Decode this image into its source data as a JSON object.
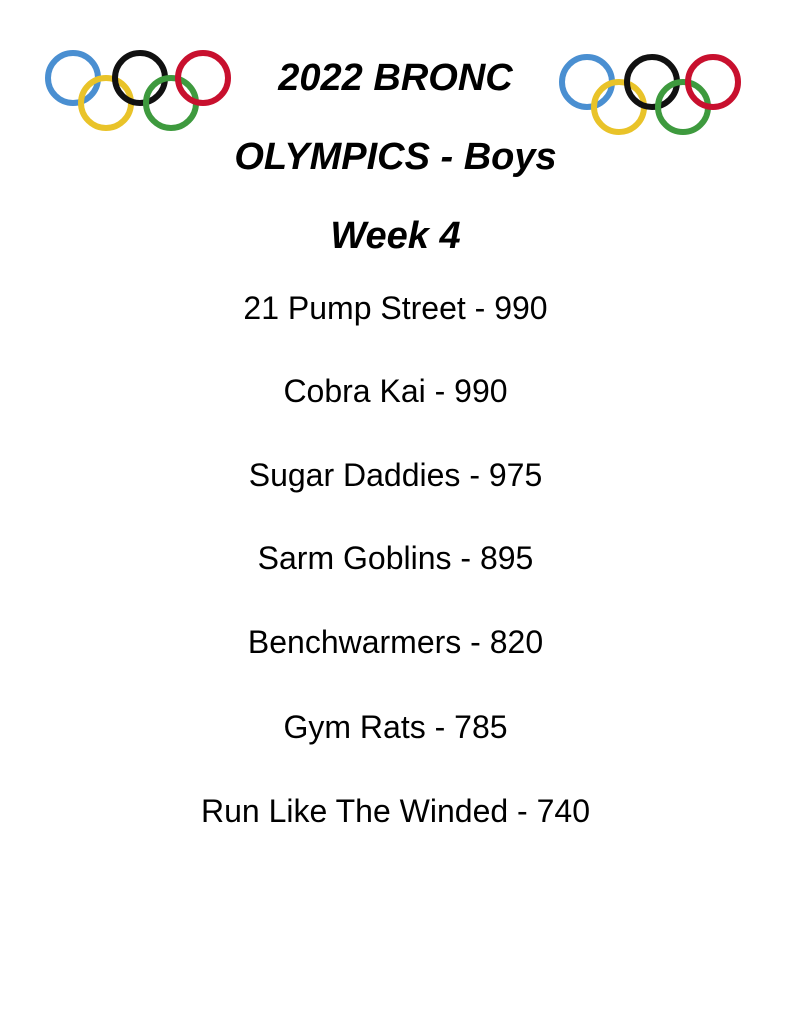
{
  "title": {
    "line1": "2022 BRONC",
    "line2": "OLYMPICS - Boys",
    "line3": "Week 4"
  },
  "logo": {
    "icon": "olympic-rings-icon",
    "colors": [
      "#4a8fd1",
      "#e9c329",
      "#000000",
      "#3e9a3e",
      "#c8102e"
    ]
  },
  "standings": [
    {
      "text": "21 Pump Street - 990"
    },
    {
      "text": "Cobra Kai - 990"
    },
    {
      "text": "Sugar Daddies - 975"
    },
    {
      "text": "Sarm Goblins - 895"
    },
    {
      "text": "Benchwarmers - 820"
    },
    {
      "text": "Gym Rats - 785"
    },
    {
      "text": "Run Like The Winded - 740"
    }
  ]
}
